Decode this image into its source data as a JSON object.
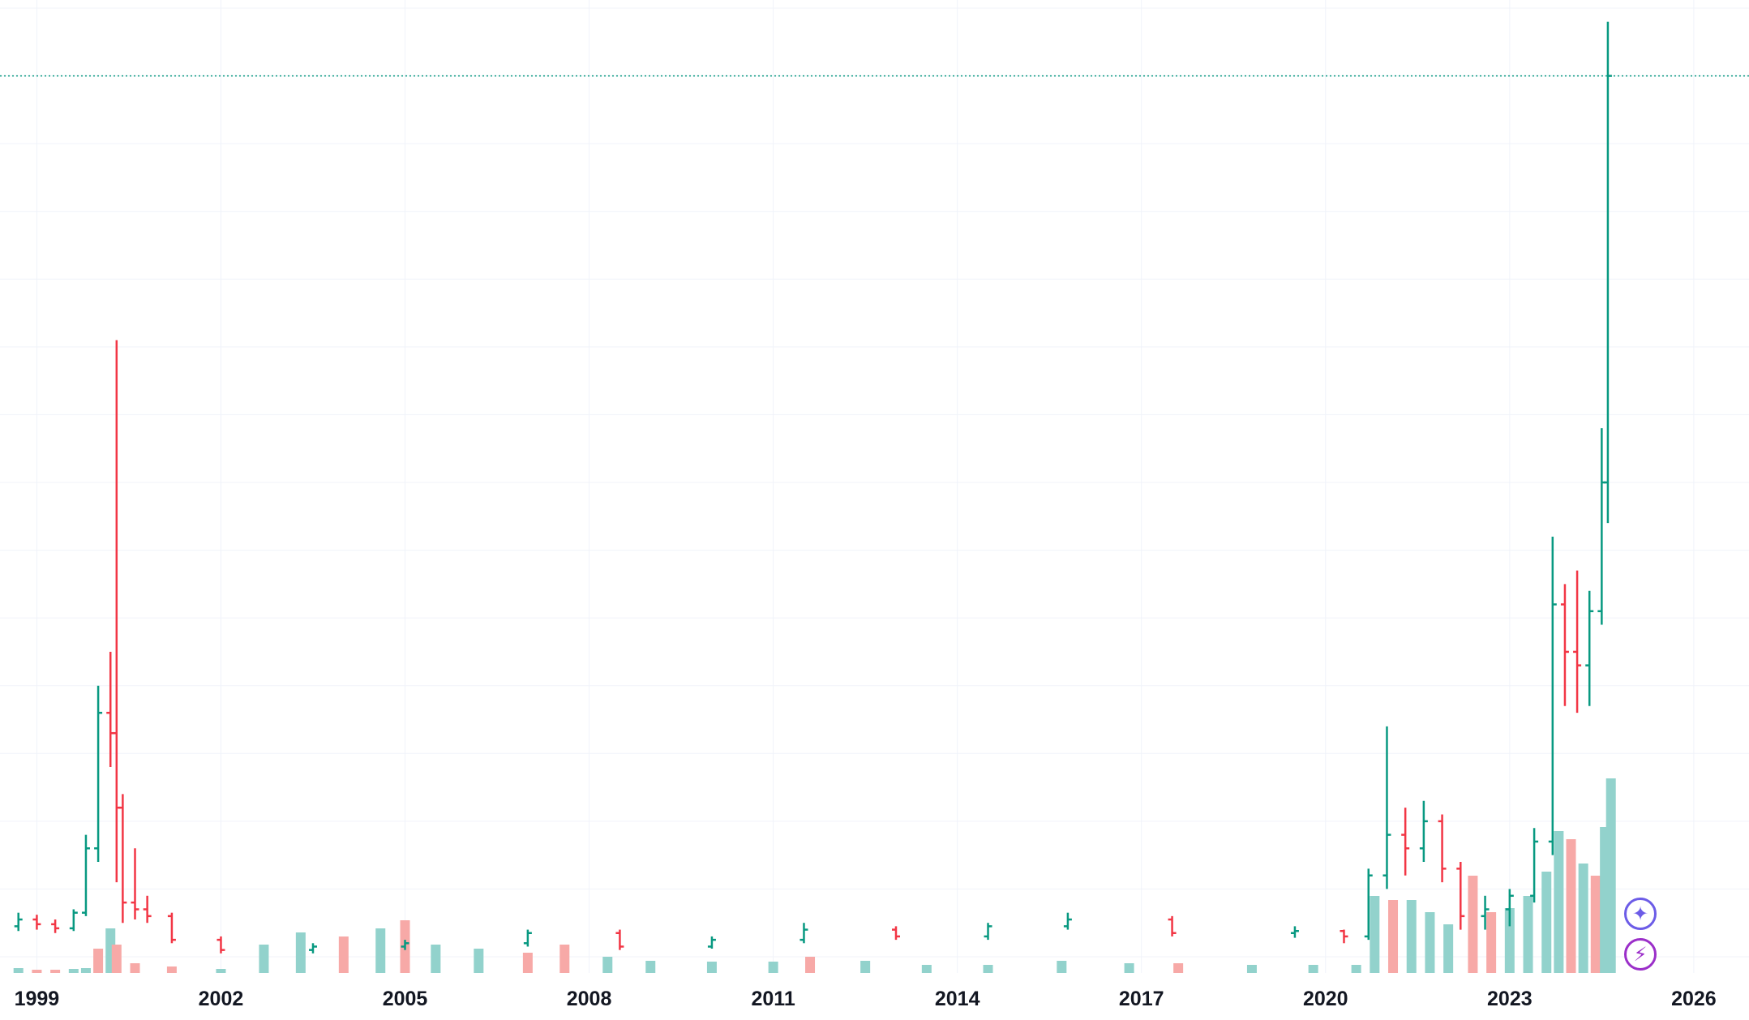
{
  "chart_data": {
    "type": "ohlc",
    "title": "",
    "xlabel": "",
    "ylabel": "",
    "x_ticks": [
      "1999",
      "2002",
      "2005",
      "2008",
      "2011",
      "2014",
      "2017",
      "2020",
      "2023",
      "2026"
    ],
    "x_tick_years": [
      1999,
      2002,
      2005,
      2008,
      2011,
      2014,
      2017,
      2020,
      2023,
      2026
    ],
    "xlim": [
      1998.4,
      2026.9
    ],
    "ylim": [
      0,
      14
    ],
    "y_gridlines": [
      0,
      1,
      2,
      3,
      4,
      5,
      6,
      7,
      8,
      9,
      10,
      11,
      12,
      13,
      14
    ],
    "price_line": 13.0,
    "series": [
      {
        "type": "ohlc",
        "points": [
          {
            "t": 1998.7,
            "o": 0.45,
            "h": 0.65,
            "l": 0.38,
            "c": 0.55
          },
          {
            "t": 1999.0,
            "o": 0.55,
            "h": 0.62,
            "l": 0.4,
            "c": 0.48
          },
          {
            "t": 1999.3,
            "o": 0.48,
            "h": 0.55,
            "l": 0.35,
            "c": 0.42
          },
          {
            "t": 1999.6,
            "o": 0.42,
            "h": 0.7,
            "l": 0.38,
            "c": 0.65
          },
          {
            "t": 1999.8,
            "o": 0.65,
            "h": 1.8,
            "l": 0.6,
            "c": 1.6
          },
          {
            "t": 2000.0,
            "o": 1.6,
            "h": 4.0,
            "l": 1.4,
            "c": 3.6
          },
          {
            "t": 2000.2,
            "o": 3.6,
            "h": 4.5,
            "l": 2.8,
            "c": 3.3
          },
          {
            "t": 2000.3,
            "o": 3.3,
            "h": 9.1,
            "l": 1.1,
            "c": 2.2
          },
          {
            "t": 2000.4,
            "o": 2.2,
            "h": 2.4,
            "l": 0.5,
            "c": 0.8
          },
          {
            "t": 2000.6,
            "o": 0.8,
            "h": 1.6,
            "l": 0.55,
            "c": 0.7
          },
          {
            "t": 2000.8,
            "o": 0.7,
            "h": 0.9,
            "l": 0.5,
            "c": 0.6
          },
          {
            "t": 2001.2,
            "o": 0.6,
            "h": 0.65,
            "l": 0.2,
            "c": 0.25
          },
          {
            "t": 2002.0,
            "o": 0.25,
            "h": 0.3,
            "l": 0.05,
            "c": 0.1
          },
          {
            "t": 2003.5,
            "o": 0.1,
            "h": 0.2,
            "l": 0.05,
            "c": 0.15
          },
          {
            "t": 2005.0,
            "o": 0.15,
            "h": 0.25,
            "l": 0.1,
            "c": 0.2
          },
          {
            "t": 2007.0,
            "o": 0.2,
            "h": 0.4,
            "l": 0.15,
            "c": 0.35
          },
          {
            "t": 2008.5,
            "o": 0.35,
            "h": 0.4,
            "l": 0.1,
            "c": 0.15
          },
          {
            "t": 2010.0,
            "o": 0.15,
            "h": 0.3,
            "l": 0.12,
            "c": 0.25
          },
          {
            "t": 2011.5,
            "o": 0.25,
            "h": 0.5,
            "l": 0.2,
            "c": 0.4
          },
          {
            "t": 2013.0,
            "o": 0.4,
            "h": 0.45,
            "l": 0.25,
            "c": 0.3
          },
          {
            "t": 2014.5,
            "o": 0.3,
            "h": 0.5,
            "l": 0.25,
            "c": 0.45
          },
          {
            "t": 2015.8,
            "o": 0.45,
            "h": 0.65,
            "l": 0.4,
            "c": 0.55
          },
          {
            "t": 2017.5,
            "o": 0.55,
            "h": 0.6,
            "l": 0.3,
            "c": 0.35
          },
          {
            "t": 2019.5,
            "o": 0.35,
            "h": 0.45,
            "l": 0.28,
            "c": 0.38
          },
          {
            "t": 2020.3,
            "o": 0.38,
            "h": 0.4,
            "l": 0.2,
            "c": 0.3
          },
          {
            "t": 2020.7,
            "o": 0.3,
            "h": 1.3,
            "l": 0.25,
            "c": 1.2
          },
          {
            "t": 2021.0,
            "o": 1.2,
            "h": 3.4,
            "l": 1.0,
            "c": 1.8
          },
          {
            "t": 2021.3,
            "o": 1.8,
            "h": 2.2,
            "l": 1.2,
            "c": 1.6
          },
          {
            "t": 2021.6,
            "o": 1.6,
            "h": 2.3,
            "l": 1.4,
            "c": 2.0
          },
          {
            "t": 2021.9,
            "o": 2.0,
            "h": 2.1,
            "l": 1.1,
            "c": 1.3
          },
          {
            "t": 2022.2,
            "o": 1.3,
            "h": 1.4,
            "l": 0.4,
            "c": 0.6
          },
          {
            "t": 2022.6,
            "o": 0.6,
            "h": 0.9,
            "l": 0.4,
            "c": 0.7
          },
          {
            "t": 2023.0,
            "o": 0.7,
            "h": 1.0,
            "l": 0.45,
            "c": 0.9
          },
          {
            "t": 2023.4,
            "o": 0.9,
            "h": 1.9,
            "l": 0.8,
            "c": 1.7
          },
          {
            "t": 2023.7,
            "o": 1.7,
            "h": 6.2,
            "l": 1.5,
            "c": 5.2
          },
          {
            "t": 2023.9,
            "o": 5.2,
            "h": 5.5,
            "l": 3.7,
            "c": 4.5
          },
          {
            "t": 2024.1,
            "o": 4.5,
            "h": 5.7,
            "l": 3.6,
            "c": 4.3
          },
          {
            "t": 2024.3,
            "o": 4.3,
            "h": 5.4,
            "l": 3.7,
            "c": 5.1
          },
          {
            "t": 2024.5,
            "o": 5.1,
            "h": 7.8,
            "l": 4.9,
            "c": 7.0
          },
          {
            "t": 2024.6,
            "o": 7.0,
            "h": 13.8,
            "l": 6.4,
            "c": 13.0
          }
        ]
      },
      {
        "type": "volume",
        "points": [
          {
            "t": 1998.7,
            "v": 0.06,
            "up": true
          },
          {
            "t": 1999.0,
            "v": 0.04,
            "up": false
          },
          {
            "t": 1999.3,
            "v": 0.04,
            "up": false
          },
          {
            "t": 1999.6,
            "v": 0.05,
            "up": true
          },
          {
            "t": 1999.8,
            "v": 0.06,
            "up": true
          },
          {
            "t": 2000.0,
            "v": 0.3,
            "up": false
          },
          {
            "t": 2000.2,
            "v": 0.55,
            "up": true
          },
          {
            "t": 2000.3,
            "v": 0.35,
            "up": false
          },
          {
            "t": 2000.6,
            "v": 0.12,
            "up": false
          },
          {
            "t": 2001.2,
            "v": 0.08,
            "up": false
          },
          {
            "t": 2002.0,
            "v": 0.05,
            "up": true
          },
          {
            "t": 2002.7,
            "v": 0.35,
            "up": true
          },
          {
            "t": 2003.3,
            "v": 0.5,
            "up": true
          },
          {
            "t": 2004.0,
            "v": 0.45,
            "up": false
          },
          {
            "t": 2004.6,
            "v": 0.55,
            "up": true
          },
          {
            "t": 2005.0,
            "v": 0.65,
            "up": false
          },
          {
            "t": 2005.5,
            "v": 0.35,
            "up": true
          },
          {
            "t": 2006.2,
            "v": 0.3,
            "up": true
          },
          {
            "t": 2007.0,
            "v": 0.25,
            "up": false
          },
          {
            "t": 2007.6,
            "v": 0.35,
            "up": false
          },
          {
            "t": 2008.3,
            "v": 0.2,
            "up": true
          },
          {
            "t": 2009.0,
            "v": 0.15,
            "up": true
          },
          {
            "t": 2010.0,
            "v": 0.14,
            "up": true
          },
          {
            "t": 2011.0,
            "v": 0.14,
            "up": true
          },
          {
            "t": 2011.6,
            "v": 0.2,
            "up": false
          },
          {
            "t": 2012.5,
            "v": 0.15,
            "up": true
          },
          {
            "t": 2013.5,
            "v": 0.1,
            "up": true
          },
          {
            "t": 2014.5,
            "v": 0.1,
            "up": true
          },
          {
            "t": 2015.7,
            "v": 0.15,
            "up": true
          },
          {
            "t": 2016.8,
            "v": 0.12,
            "up": true
          },
          {
            "t": 2017.6,
            "v": 0.12,
            "up": false
          },
          {
            "t": 2018.8,
            "v": 0.1,
            "up": true
          },
          {
            "t": 2019.8,
            "v": 0.1,
            "up": true
          },
          {
            "t": 2020.5,
            "v": 0.1,
            "up": true
          },
          {
            "t": 2020.8,
            "v": 0.95,
            "up": true
          },
          {
            "t": 2021.1,
            "v": 0.9,
            "up": false
          },
          {
            "t": 2021.4,
            "v": 0.9,
            "up": true
          },
          {
            "t": 2021.7,
            "v": 0.75,
            "up": true
          },
          {
            "t": 2022.0,
            "v": 0.6,
            "up": true
          },
          {
            "t": 2022.4,
            "v": 1.2,
            "up": false
          },
          {
            "t": 2022.7,
            "v": 0.75,
            "up": false
          },
          {
            "t": 2023.0,
            "v": 0.8,
            "up": true
          },
          {
            "t": 2023.3,
            "v": 0.95,
            "up": true
          },
          {
            "t": 2023.6,
            "v": 1.25,
            "up": true
          },
          {
            "t": 2023.8,
            "v": 1.75,
            "up": true
          },
          {
            "t": 2024.0,
            "v": 1.65,
            "up": false
          },
          {
            "t": 2024.2,
            "v": 1.35,
            "up": true
          },
          {
            "t": 2024.4,
            "v": 1.2,
            "up": false
          },
          {
            "t": 2024.55,
            "v": 1.8,
            "up": true
          },
          {
            "t": 2024.65,
            "v": 2.4,
            "up": true
          }
        ]
      }
    ],
    "colors": {
      "up": "#089981",
      "down": "#f23645",
      "up_volume": "#92d2cc",
      "down_volume": "#f7a9a7",
      "grid": "#f0f3fa",
      "price_line": "#089981"
    },
    "grid": true,
    "legend": "none"
  },
  "overlay_icons": [
    {
      "name": "spark-icon",
      "glyph": "✦"
    },
    {
      "name": "bolt-icon",
      "glyph": "⚡"
    }
  ]
}
